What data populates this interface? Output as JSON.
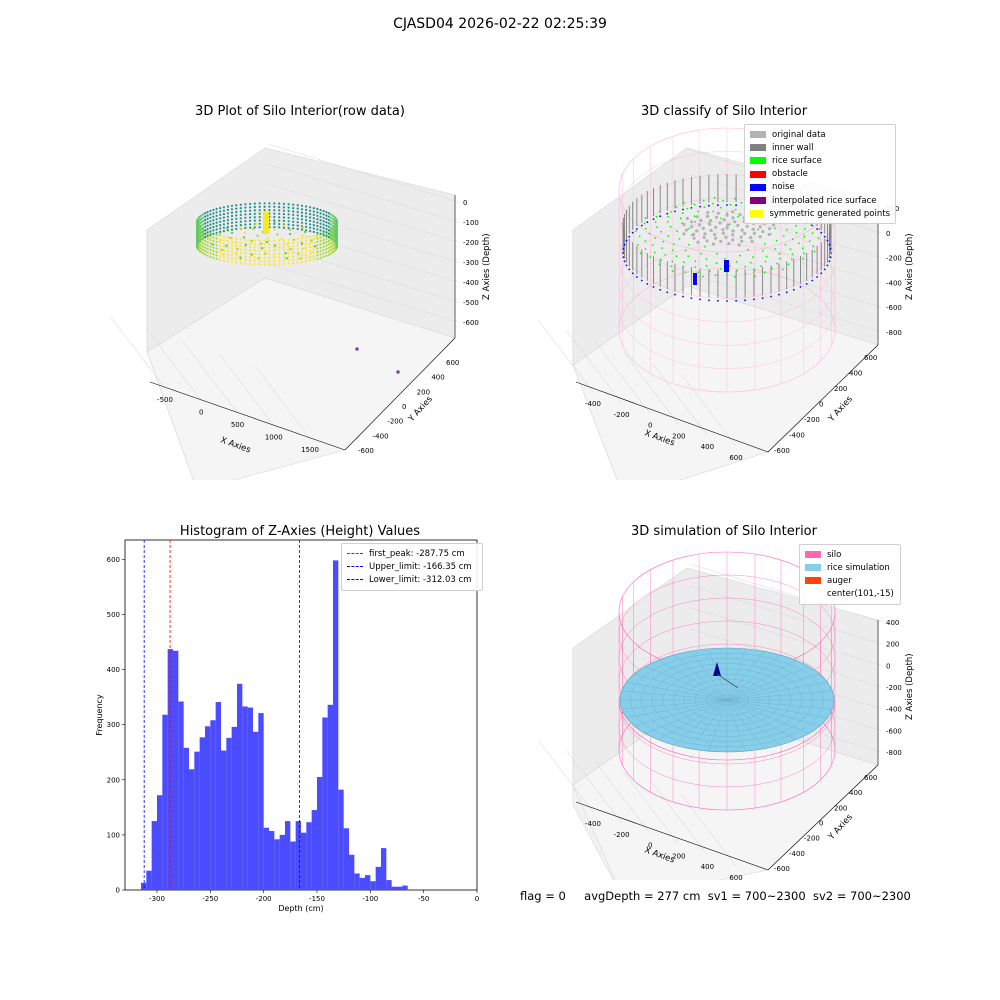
{
  "figure": {
    "suptitle": "CJASD04 2026-02-22 02:25:39",
    "status": {
      "flag": "flag = 0",
      "avg_depth": "avgDepth = 277 cm",
      "sv1": "sv1 = 700~2300",
      "sv2": "sv2 = 700~2300"
    }
  },
  "colors": {
    "gray_light": "#b3b3b3",
    "gray_dark": "#808080",
    "green": "#00ff00",
    "red": "#ff0000",
    "blue": "#0000ff",
    "purple": "#800080",
    "yellow": "#ffff00",
    "silo_pink": "#ff69b4",
    "rice_blue": "#87ceeb",
    "auger_orange": "#ff4500",
    "hist_bar": "#4b4bff"
  },
  "panel1": {
    "title": "3D Plot of Silo Interior(row data)",
    "xlabel": "X Axies",
    "ylabel": "Y Axies",
    "zlabel": "Z Axies (Depth)",
    "xticks": [
      "-500",
      "0",
      "500",
      "1000",
      "1500"
    ],
    "yticks": [
      "600",
      "400",
      "200",
      "0",
      "-200",
      "-400",
      "-600"
    ],
    "zticks": [
      "0",
      "-100",
      "-200",
      "-300",
      "-400",
      "-500",
      "-600"
    ],
    "colormap": "viridis"
  },
  "panel2": {
    "title": "3D classify of Silo Interior",
    "xlabel": "X Axies",
    "ylabel": "Y Axies",
    "zlabel": "Z Axies (Depth)",
    "xticks": [
      "-400",
      "-200",
      "0",
      "200",
      "400",
      "600"
    ],
    "yticks": [
      "600",
      "400",
      "200",
      "0",
      "-200",
      "-400",
      "-600"
    ],
    "zticks": [
      "200",
      "0",
      "-200",
      "-400",
      "-600",
      "-800"
    ],
    "legend": [
      {
        "label": "original data",
        "color": "#b3b3b3"
      },
      {
        "label": "inner wall",
        "color": "#808080"
      },
      {
        "label": "rice surface",
        "color": "#00ff00"
      },
      {
        "label": "obstacle",
        "color": "#ff0000"
      },
      {
        "label": "noise",
        "color": "#0000ff"
      },
      {
        "label": "interpolated rice surface",
        "color": "#800080"
      },
      {
        "label": "symmetric generated points",
        "color": "#ffff00"
      }
    ]
  },
  "panel4": {
    "title": "3D simulation of Silo Interior",
    "xlabel": "X Axies",
    "ylabel": "Y Axies",
    "zlabel": "Z Axies (Depth)",
    "xticks": [
      "-400",
      "-200",
      "0",
      "200",
      "400",
      "600"
    ],
    "yticks": [
      "600",
      "400",
      "200",
      "0",
      "-200",
      "-400",
      "-600"
    ],
    "zticks": [
      "400",
      "200",
      "0",
      "-200",
      "-400",
      "-600",
      "-800"
    ],
    "legend": [
      {
        "label": "silo",
        "color": "#ff69b4"
      },
      {
        "label": "rice simulation",
        "color": "#87ceeb"
      },
      {
        "label": "auger",
        "color": "#ff4500"
      },
      {
        "label": "center(101,-15)",
        "color": "#ffffff"
      }
    ]
  },
  "chart_data": [
    {
      "type": "bar",
      "title": "Histogram of Z-Axies (Height) Values",
      "xlabel": "Depth (cm)",
      "ylabel": "Frequency",
      "xlim": [
        -330,
        0
      ],
      "ylim": [
        0,
        635
      ],
      "xticks": [
        -300,
        -250,
        -200,
        -150,
        -100,
        -50,
        0
      ],
      "yticks": [
        0,
        100,
        200,
        300,
        400,
        500,
        600
      ],
      "bin_width": 5,
      "bin_start": -325,
      "values": [
        0,
        0,
        13,
        35,
        125,
        172,
        318,
        437,
        434,
        342,
        258,
        219,
        251,
        277,
        297,
        308,
        341,
        253,
        276,
        296,
        374,
        333,
        331,
        287,
        321,
        113,
        107,
        92,
        100,
        125,
        88,
        125,
        104,
        123,
        145,
        205,
        313,
        336,
        598,
        182,
        112,
        64,
        30,
        22,
        27,
        16,
        42,
        76,
        18,
        6,
        6,
        8
      ],
      "vlines": [
        {
          "label": "first_peak: -287.75 cm",
          "x": -287.75,
          "color": "#ff0000"
        },
        {
          "label": "Upper_limit: -166.35 cm",
          "x": -166.35,
          "color": "#0000ff"
        },
        {
          "label": "Lower_limit: -312.03 cm",
          "x": -312.03,
          "color": "#0000ff"
        }
      ],
      "legend_position": "upper right"
    }
  ]
}
